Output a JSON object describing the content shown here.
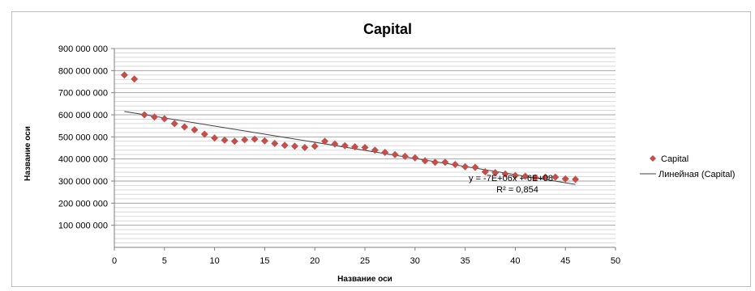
{
  "chart_data": {
    "type": "scatter",
    "title": "Capital",
    "xlabel": "Название оси",
    "ylabel": "Название оси",
    "xlim": [
      0,
      50
    ],
    "ylim": [
      0,
      900000000
    ],
    "x_ticks": [
      0,
      5,
      10,
      15,
      20,
      25,
      30,
      35,
      40,
      45,
      50
    ],
    "y_ticks": [
      {
        "value": 100000000,
        "label": "100 000 000"
      },
      {
        "value": 200000000,
        "label": "200 000 000"
      },
      {
        "value": 300000000,
        "label": "300 000 000"
      },
      {
        "value": 400000000,
        "label": "400 000 000"
      },
      {
        "value": 500000000,
        "label": "500 000 000"
      },
      {
        "value": 600000000,
        "label": "600 000 000"
      },
      {
        "value": 700000000,
        "label": "700 000 000"
      },
      {
        "value": 800000000,
        "label": "800 000 000"
      },
      {
        "value": 900000000,
        "label": "900 000 000"
      }
    ],
    "grid": true,
    "legend_position": "right",
    "series": [
      {
        "name": "Capital",
        "marker": "diamond",
        "color": "#c0504d",
        "x": [
          1,
          2,
          3,
          4,
          5,
          6,
          7,
          8,
          9,
          10,
          11,
          12,
          13,
          14,
          15,
          16,
          17,
          18,
          19,
          20,
          21,
          22,
          23,
          24,
          25,
          26,
          27,
          28,
          29,
          30,
          31,
          32,
          33,
          34,
          35,
          36,
          37,
          38,
          39,
          40,
          41,
          42,
          43,
          44,
          45,
          46
        ],
        "y": [
          780000000,
          762000000,
          600000000,
          590000000,
          582000000,
          560000000,
          545000000,
          532000000,
          512000000,
          495000000,
          485000000,
          480000000,
          487000000,
          490000000,
          482000000,
          470000000,
          462000000,
          458000000,
          452000000,
          458000000,
          480000000,
          468000000,
          460000000,
          455000000,
          452000000,
          440000000,
          430000000,
          420000000,
          412000000,
          405000000,
          392000000,
          385000000,
          385000000,
          375000000,
          365000000,
          362000000,
          342000000,
          338000000,
          332000000,
          325000000,
          322000000,
          315000000,
          318000000,
          318000000,
          310000000,
          308000000
        ]
      }
    ],
    "trendline": {
      "name": "Линейная (Capital)",
      "color": "#404040",
      "x_start": 1,
      "y_start": 615000000,
      "x_end": 46,
      "y_end": 285000000,
      "equation": "y = -7E+06x + 6E+08",
      "r_squared": "R² = 0,854"
    }
  }
}
